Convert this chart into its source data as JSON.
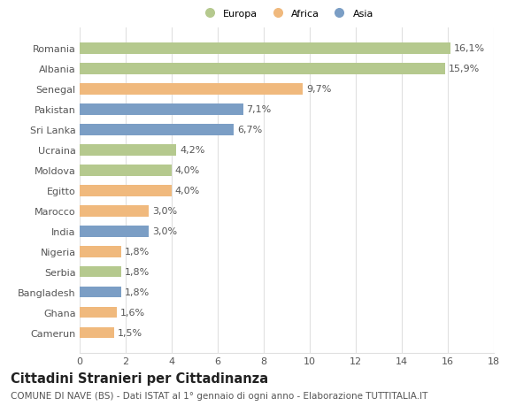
{
  "categories": [
    "Camerun",
    "Ghana",
    "Bangladesh",
    "Serbia",
    "Nigeria",
    "India",
    "Marocco",
    "Egitto",
    "Moldova",
    "Ucraina",
    "Sri Lanka",
    "Pakistan",
    "Senegal",
    "Albania",
    "Romania"
  ],
  "values": [
    1.5,
    1.6,
    1.8,
    1.8,
    1.8,
    3.0,
    3.0,
    4.0,
    4.0,
    4.2,
    6.7,
    7.1,
    9.7,
    15.9,
    16.1
  ],
  "labels": [
    "1,5%",
    "1,6%",
    "1,8%",
    "1,8%",
    "1,8%",
    "3,0%",
    "3,0%",
    "4,0%",
    "4,0%",
    "4,2%",
    "6,7%",
    "7,1%",
    "9,7%",
    "15,9%",
    "16,1%"
  ],
  "continents": [
    "Africa",
    "Africa",
    "Asia",
    "Europa",
    "Africa",
    "Asia",
    "Africa",
    "Africa",
    "Europa",
    "Europa",
    "Asia",
    "Asia",
    "Africa",
    "Europa",
    "Europa"
  ],
  "colors": {
    "Europa": "#b5c98e",
    "Africa": "#f0b97d",
    "Asia": "#7b9ec5"
  },
  "legend_labels": [
    "Europa",
    "Africa",
    "Asia"
  ],
  "title": "Cittadini Stranieri per Cittadinanza",
  "subtitle": "COMUNE DI NAVE (BS) - Dati ISTAT al 1° gennaio di ogni anno - Elaborazione TUTTITALIA.IT",
  "xlim": [
    0,
    18
  ],
  "xticks": [
    0,
    2,
    4,
    6,
    8,
    10,
    12,
    14,
    16,
    18
  ],
  "background_color": "#ffffff",
  "grid_color": "#e0e0e0",
  "bar_height": 0.55,
  "label_fontsize": 8,
  "tick_fontsize": 8,
  "title_fontsize": 10.5,
  "subtitle_fontsize": 7.5
}
